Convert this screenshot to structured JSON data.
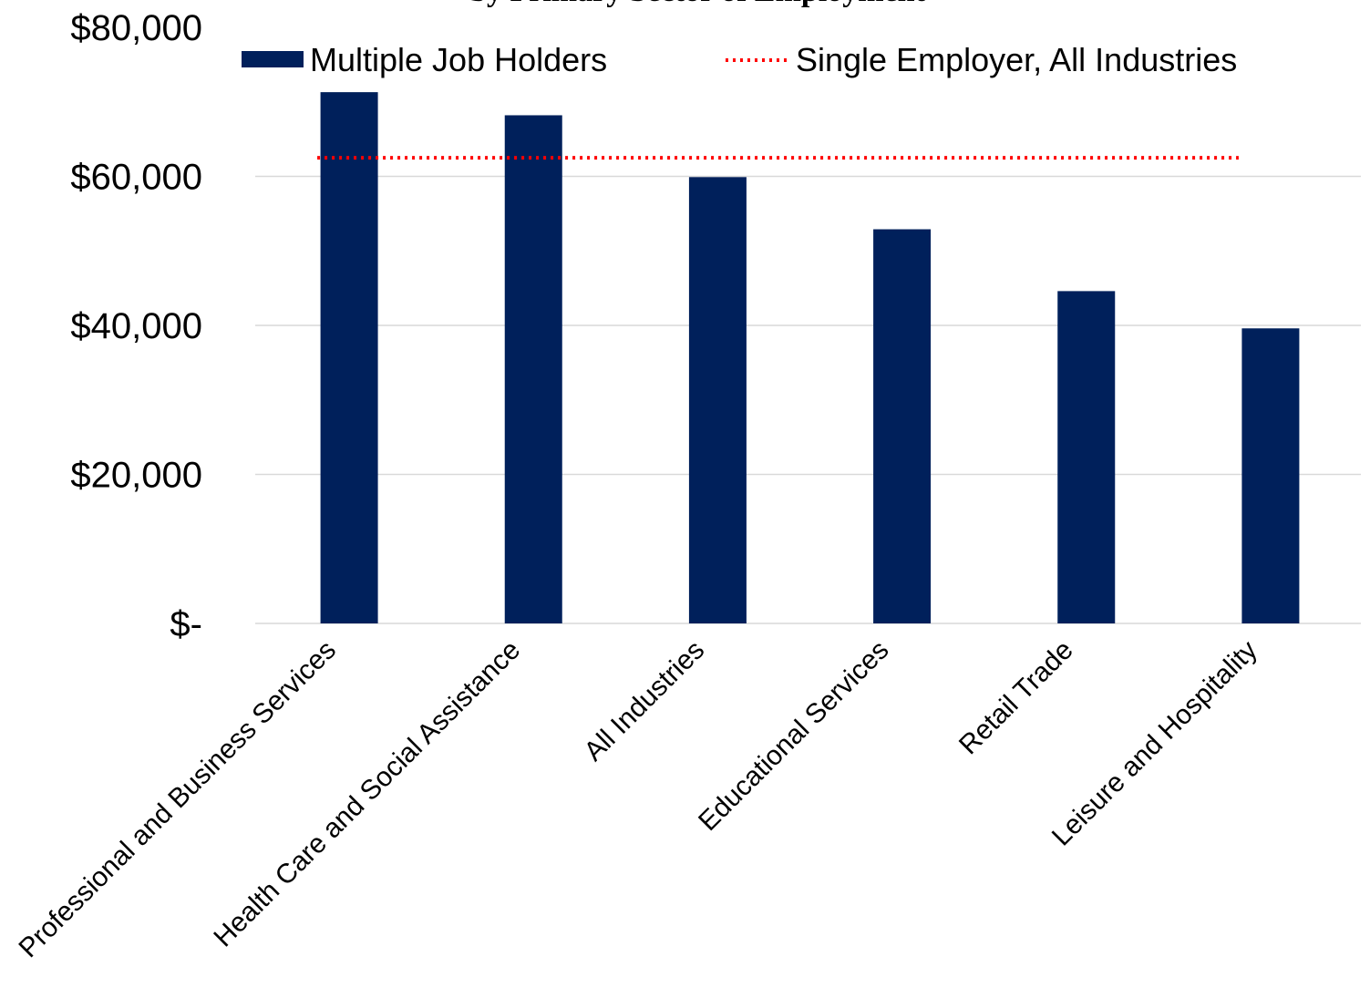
{
  "chart_data": {
    "type": "bar",
    "title": "by Primary Sector of Employment",
    "categories": [
      "Professional and Business Services",
      "Health Care and Social Assistance",
      "All Industries",
      "Educational Services",
      "Retail Trade",
      "Leisure and Hospitality"
    ],
    "series": [
      {
        "name": "Multiple Job Holders",
        "type": "bar",
        "values": [
          71300,
          68200,
          59900,
          52900,
          44600,
          39600
        ]
      },
      {
        "name": "Single Employer, All Industries",
        "type": "line",
        "style": "dotted",
        "value": 62500
      }
    ],
    "y_ticks": [
      0,
      20000,
      40000,
      60000,
      80000
    ],
    "y_tick_labels": [
      "$-",
      "$20,000",
      "$40,000",
      "$60,000",
      "$80,000"
    ],
    "ylim": [
      0,
      80000
    ],
    "grid": true,
    "legend_position": "top",
    "colors": {
      "bar": "#00205B",
      "line": "#FF0000",
      "grid": "#D9D9D9",
      "text": "#000000"
    }
  }
}
